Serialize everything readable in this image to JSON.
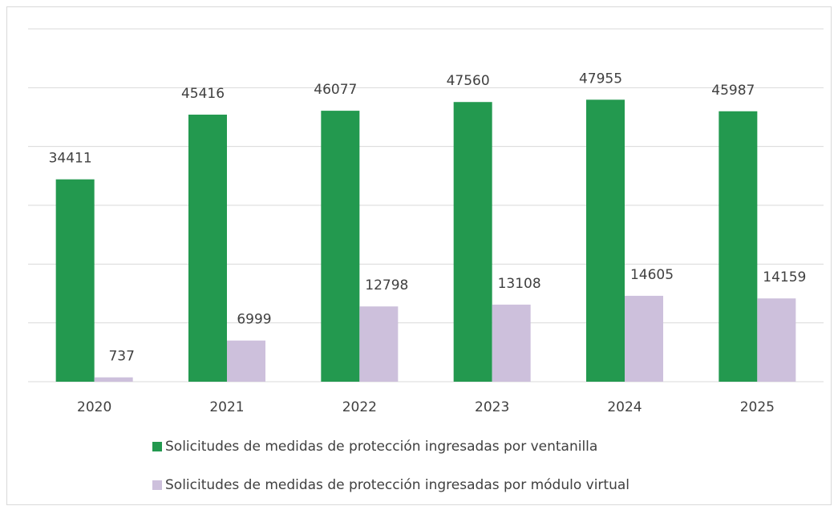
{
  "chart_data": {
    "type": "bar",
    "categories": [
      "2020",
      "2021",
      "2022",
      "2023",
      "2024",
      "2025"
    ],
    "series": [
      {
        "name": "Solicitudes de medidas de protección ingresadas por ventanilla",
        "color": "#23994f",
        "values": [
          34411,
          45416,
          46077,
          47560,
          47955,
          45987
        ]
      },
      {
        "name": "Solicitudes de medidas de protección ingresadas por módulo virtual",
        "color": "#cdc0dc",
        "values": [
          737,
          6999,
          12798,
          13108,
          14605,
          14159
        ]
      }
    ],
    "ylim": [
      0,
      60000
    ],
    "yticks": [
      0,
      10000,
      20000,
      30000,
      40000,
      50000,
      60000
    ],
    "grid": true
  }
}
